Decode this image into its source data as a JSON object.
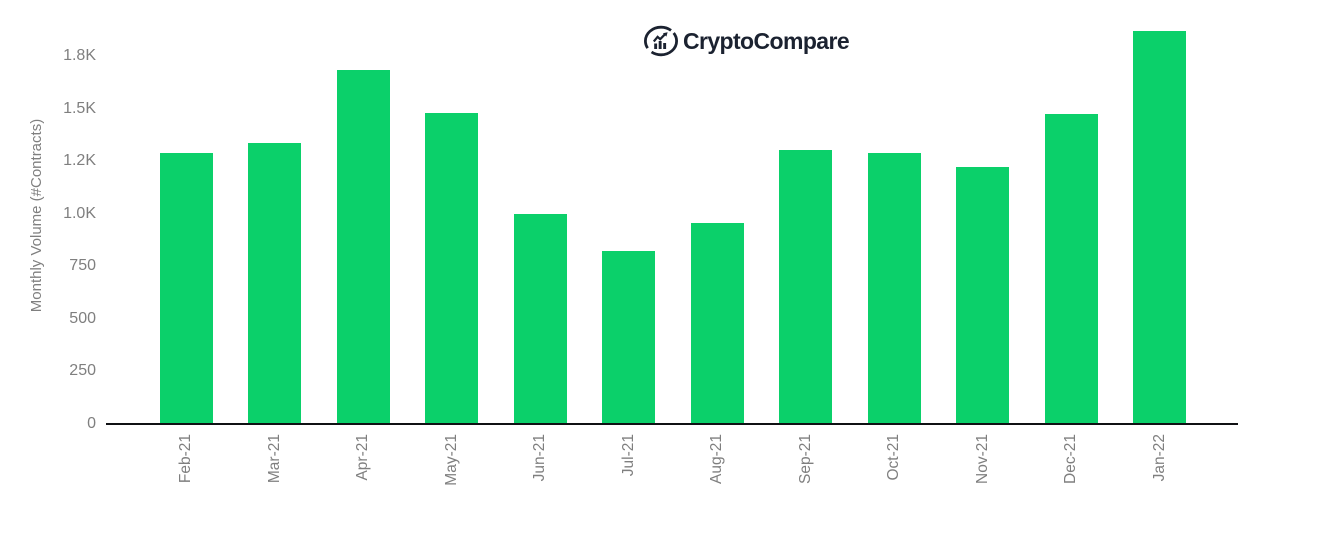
{
  "logo": {
    "brand_part1": "Crypto",
    "brand_part2": "Compare",
    "icon": "chart-up-circle"
  },
  "chart_data": {
    "type": "bar",
    "title": "",
    "categories": [
      "Feb-21",
      "Mar-21",
      "Apr-21",
      "May-21",
      "Jun-21",
      "Jul-21",
      "Aug-21",
      "Sep-21",
      "Oct-21",
      "Nov-21",
      "Dec-21",
      "Jan-22"
    ],
    "values": [
      1290,
      1335,
      1685,
      1480,
      1000,
      825,
      955,
      1305,
      1290,
      1220,
      1475,
      1870
    ],
    "xlabel": "",
    "ylabel": "Monthly Volume (#Contracts)",
    "ylim": [
      0,
      1950
    ],
    "yticks": [
      {
        "value": 0,
        "label": "0"
      },
      {
        "value": 250,
        "label": "250"
      },
      {
        "value": 500,
        "label": "500"
      },
      {
        "value": 750,
        "label": "750"
      },
      {
        "value": 1000,
        "label": "1.0K"
      },
      {
        "value": 1250,
        "label": "1.2K"
      },
      {
        "value": 1500,
        "label": "1.5K"
      },
      {
        "value": 1750,
        "label": "1.8K"
      }
    ],
    "grid": false,
    "legend": "none",
    "bar_color": "#0BD06A"
  },
  "colors": {
    "bar_green": "#0BD06A",
    "logo_navy": "#1B2230",
    "axis_black": "#101114",
    "tick_gray": "#7F7F7F",
    "background": "#FFFFFF"
  }
}
